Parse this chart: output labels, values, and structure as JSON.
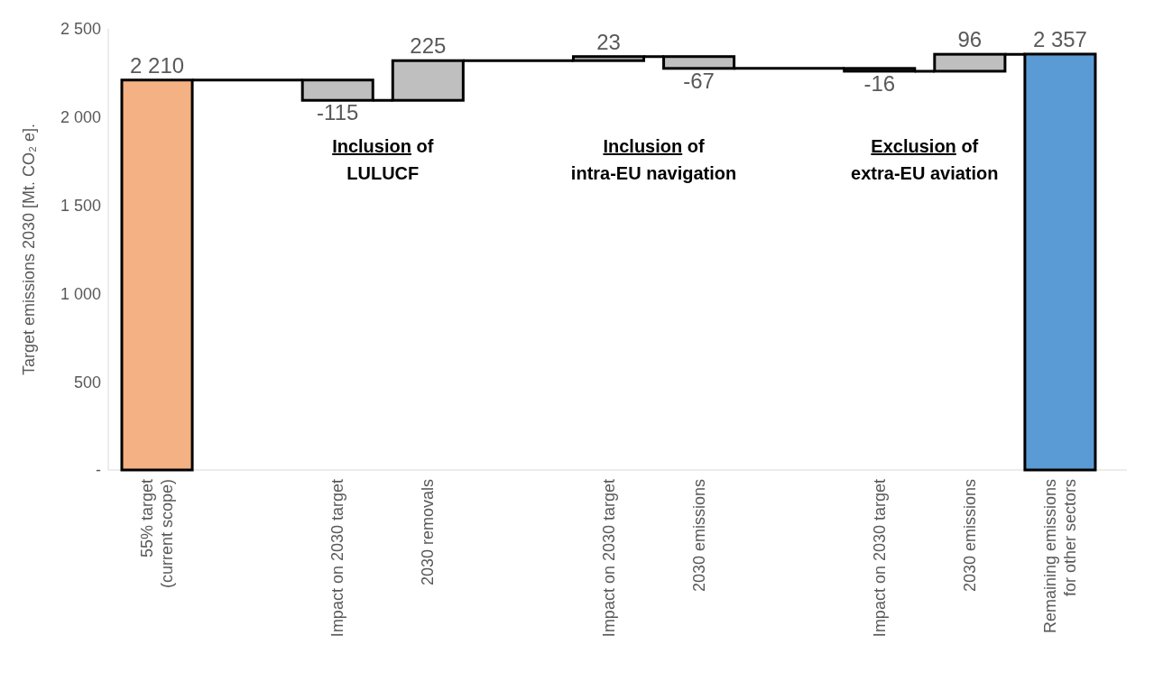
{
  "chart_data": {
    "type": "bar",
    "ylabel": "Target emissions 2030 [Mt. CO₂ e].",
    "categories": [
      "55% target\n(current scope)",
      null,
      "Impact on 2030 target",
      "2030 removals",
      null,
      "Impact on 2030 target",
      "2030 emissions",
      null,
      "Impact on 2030 target",
      "2030 emissions",
      "Remaining emissions\nfor other sectors"
    ],
    "values": [
      2210,
      null,
      -115,
      225,
      null,
      23,
      -67,
      null,
      -16,
      96,
      2357
    ],
    "base": [
      0,
      null,
      2210,
      2095,
      null,
      2320,
      2343,
      null,
      2276,
      2260,
      0
    ],
    "colors": [
      "#f4b183",
      null,
      "#bfbfbf",
      "#bfbfbf",
      null,
      "#bfbfbf",
      "#bfbfbf",
      null,
      "#bfbfbf",
      "#bfbfbf",
      "#5b9bd5"
    ],
    "value_labels": [
      "2 210",
      null,
      "-115",
      "225",
      null,
      "23",
      "-67",
      null,
      "-16",
      "96",
      "2 357"
    ],
    "ylim": [
      0,
      2500
    ],
    "yticks": [
      {
        "value": 0,
        "label": "-"
      },
      500,
      {
        "value": 1000,
        "label": "1 000"
      },
      {
        "value": 1500,
        "label": "1 500"
      },
      {
        "value": 2000,
        "label": "2 000"
      },
      {
        "value": 2500,
        "label": "2 500"
      }
    ],
    "annotations": [
      "Inclusion of\nLULUCF",
      "Inclusion of\nintra-EU navigation",
      "Exclusion of\nextra-EU aviation"
    ]
  }
}
